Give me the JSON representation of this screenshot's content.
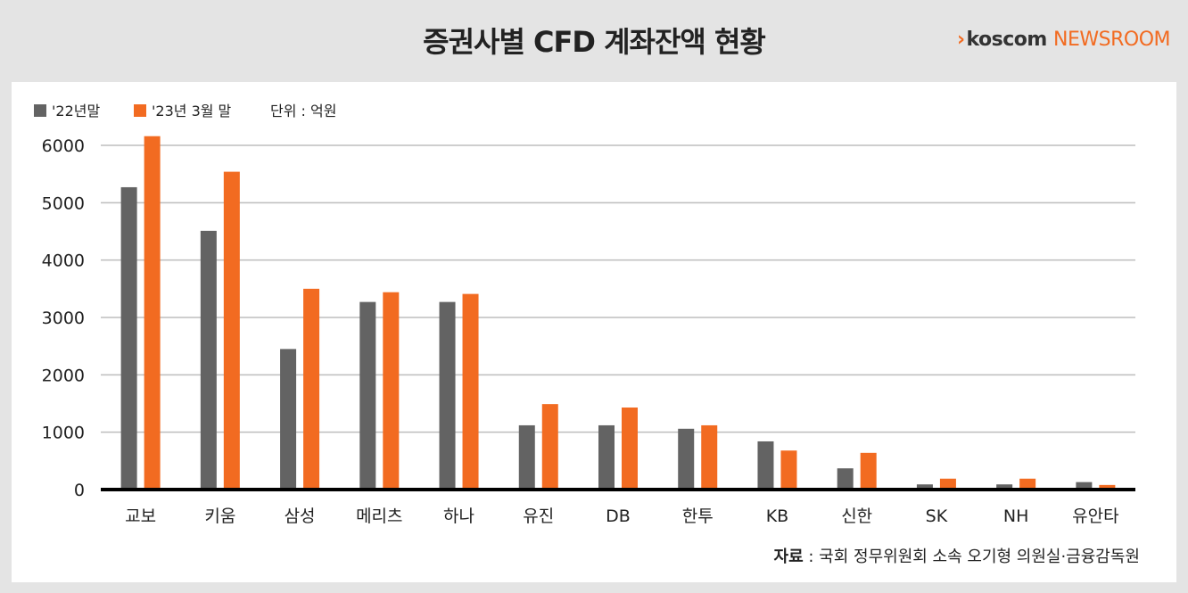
{
  "header": {
    "title": "증권사별 CFD 계좌잔액 현황",
    "brand_name": "koscom",
    "brand_suffix": "NEWSROOM"
  },
  "colors": {
    "series_2022": "#636363",
    "series_2023": "#f26b21",
    "grid": "#bdbdbd",
    "axis": "#000000"
  },
  "chart_data": {
    "type": "bar",
    "title": "증권사별 CFD 계좌잔액 현황",
    "unit_label": "단위 : 억원",
    "categories": [
      "교보",
      "키움",
      "삼성",
      "메리츠",
      "하나",
      "유진",
      "DB",
      "한투",
      "KB",
      "신한",
      "SK",
      "NH",
      "유안타"
    ],
    "series": [
      {
        "name": "'22년말",
        "color": "#636363",
        "values": [
          5270,
          4510,
          2450,
          3270,
          3270,
          1120,
          1120,
          1060,
          840,
          370,
          90,
          90,
          130
        ]
      },
      {
        "name": "'23년 3월 말",
        "color": "#f26b21",
        "values": [
          6160,
          5540,
          3500,
          3440,
          3410,
          1490,
          1430,
          1120,
          680,
          640,
          190,
          190,
          80
        ]
      }
    ],
    "ylim": [
      0,
      6000
    ],
    "yticks": [
      0,
      1000,
      2000,
      3000,
      4000,
      5000,
      6000
    ],
    "grid": true,
    "legend": "top-left"
  },
  "footer": {
    "source_label": "자료",
    "source_text": " : 국회 정무위원회 소속 오기형 의원실·금융감독원"
  }
}
